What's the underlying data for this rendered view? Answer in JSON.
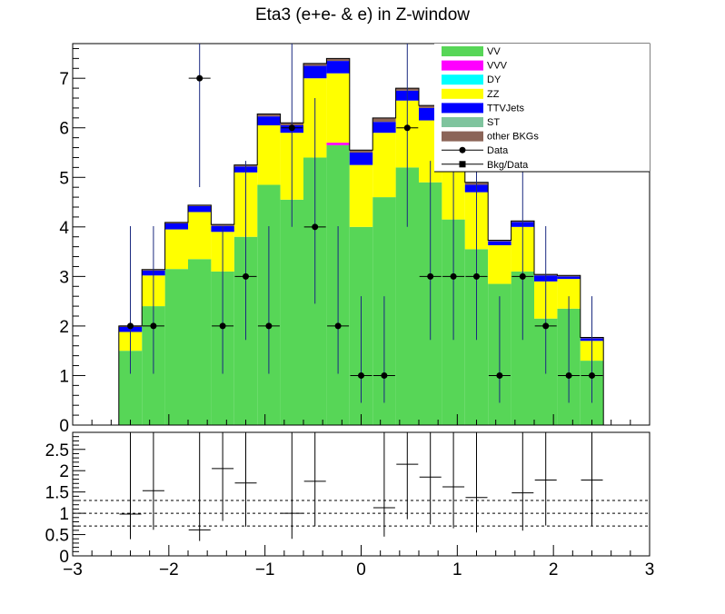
{
  "chart_data": {
    "type": "bar",
    "title": "Eta3 (e+e- & e) in Z-window",
    "xlim": [
      -3,
      3
    ],
    "ylim": [
      0,
      7.7
    ],
    "ratio_ylim": [
      0,
      2.9
    ],
    "x_ticks": [
      -3,
      -2,
      -1,
      0,
      1,
      2,
      3
    ],
    "x_tick_labels": [
      "−3",
      "−2",
      "−1",
      "0",
      "1",
      "2",
      "3"
    ],
    "y_ticks": [
      0,
      1,
      2,
      3,
      4,
      5,
      6,
      7
    ],
    "y_tick_labels": [
      "0",
      "1",
      "2",
      "3",
      "4",
      "5",
      "6",
      "7"
    ],
    "ratio_y_ticks": [
      0,
      0.5,
      1,
      1.5,
      2,
      2.5
    ],
    "ratio_y_tick_labels": [
      "0",
      "0.5",
      "1",
      "1.5",
      "2",
      "2.5"
    ],
    "ratio_reference_lines": [
      0.7,
      1.0,
      1.3
    ],
    "bin_edges": [
      -3.0,
      -2.76,
      -2.52,
      -2.28,
      -2.04,
      -1.8,
      -1.56,
      -1.32,
      -1.08,
      -0.84,
      -0.6,
      -0.36,
      -0.12,
      0.12,
      0.36,
      0.6,
      0.84,
      1.08,
      1.32,
      1.56,
      1.8,
      2.04,
      2.28,
      2.52,
      2.76,
      3.0
    ],
    "legend_position": "top-right",
    "series": [
      {
        "name": "VV",
        "color": "#57d657",
        "values": [
          0,
          0,
          1.5,
          2.4,
          3.15,
          3.35,
          3.1,
          3.8,
          4.85,
          4.55,
          5.4,
          5.65,
          4.0,
          4.6,
          5.2,
          4.9,
          4.15,
          3.55,
          2.85,
          3.1,
          2.15,
          2.35,
          1.3,
          0,
          0
        ]
      },
      {
        "name": "VVV",
        "color": "#ff00ff",
        "values": [
          0,
          0,
          0,
          0,
          0,
          0,
          0,
          0,
          0,
          0,
          0,
          0.05,
          0,
          0,
          0,
          0,
          0,
          0,
          0,
          0,
          0,
          0,
          0,
          0,
          0
        ]
      },
      {
        "name": "DY",
        "color": "#00ffff",
        "values": [
          0,
          0,
          0,
          0,
          0,
          0,
          0,
          0,
          0,
          0,
          0,
          0,
          0,
          0,
          0,
          0,
          0,
          0,
          0,
          0,
          0,
          0,
          0,
          0,
          0
        ]
      },
      {
        "name": "ZZ",
        "color": "#ffff00",
        "values": [
          0,
          0,
          0.38,
          0.62,
          0.8,
          0.95,
          0.8,
          1.3,
          1.2,
          1.35,
          1.6,
          1.4,
          1.25,
          1.3,
          1.35,
          1.25,
          1.9,
          1.15,
          0.78,
          0.9,
          0.75,
          0.6,
          0.4,
          0,
          0
        ]
      },
      {
        "name": "TTVJets",
        "color": "#0000ff",
        "values": [
          0,
          0,
          0.1,
          0.1,
          0.12,
          0.12,
          0.12,
          0.12,
          0.18,
          0.15,
          0.25,
          0.25,
          0.25,
          0.22,
          0.2,
          0.25,
          0.3,
          0.15,
          0.08,
          0.1,
          0.12,
          0.05,
          0.05,
          0,
          0
        ]
      },
      {
        "name": "ST",
        "color": "#7fc49e",
        "values": [
          0,
          0,
          0,
          0,
          0,
          0,
          0,
          0,
          0,
          0,
          0,
          0,
          0,
          0,
          0,
          0,
          0,
          0,
          0,
          0,
          0,
          0,
          0,
          0,
          0
        ]
      },
      {
        "name": "other BKGs",
        "color": "#8b6458",
        "values": [
          0,
          0,
          0.02,
          0.02,
          0.02,
          0.02,
          0.03,
          0.03,
          0.05,
          0.05,
          0.05,
          0.05,
          0.05,
          0.08,
          0.05,
          0.05,
          0.05,
          0.05,
          0.02,
          0.02,
          0.02,
          0.02,
          0.02,
          0,
          0
        ]
      }
    ],
    "data_points": {
      "name": "Data",
      "x": [
        -2.4,
        -2.16,
        -1.68,
        -1.44,
        -1.2,
        -0.96,
        -0.72,
        -0.48,
        -0.24,
        0.0,
        0.24,
        0.48,
        0.72,
        0.96,
        1.2,
        1.44,
        1.68,
        1.92,
        2.16,
        2.4
      ],
      "y": [
        2,
        2,
        7,
        2,
        3,
        2,
        6,
        4,
        2,
        1,
        1,
        6,
        3,
        3,
        3,
        1,
        3,
        2,
        1,
        1
      ]
    },
    "ratio_points": {
      "name": "Bkg/Data",
      "x": [
        -2.4,
        -2.16,
        -1.68,
        -1.44,
        -1.2,
        -0.72,
        -0.48,
        0.24,
        0.48,
        0.72,
        0.96,
        1.2,
        1.68,
        1.92,
        2.4
      ],
      "y": [
        0.98,
        1.53,
        0.61,
        2.05,
        1.71,
        1.0,
        1.75,
        1.13,
        2.15,
        1.85,
        1.62,
        1.37,
        1.48,
        1.78,
        1.78
      ]
    }
  }
}
